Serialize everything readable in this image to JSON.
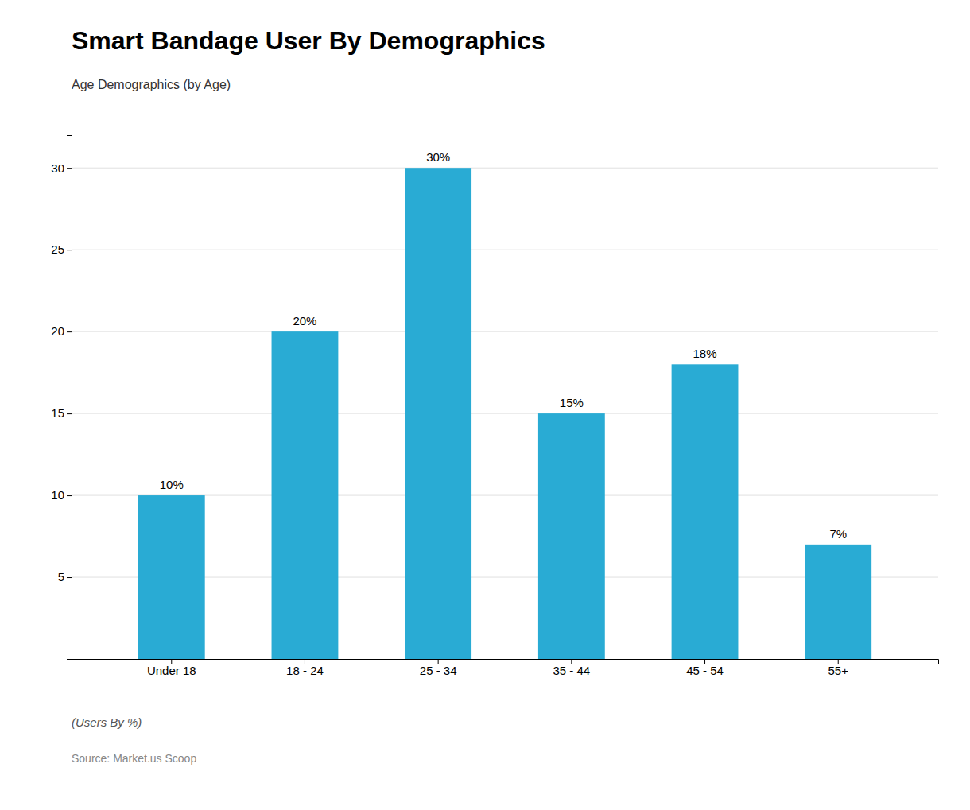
{
  "chart_data": {
    "type": "bar",
    "title": "Smart Bandage User By Demographics",
    "subtitle": "Age Demographics (by Age)",
    "categories": [
      "Under 18",
      "18 - 24",
      "25 - 34",
      "35 - 44",
      "45 - 54",
      "55+"
    ],
    "values": [
      10,
      20,
      30,
      15,
      18,
      7
    ],
    "value_labels": [
      "10%",
      "20%",
      "30%",
      "15%",
      "18%",
      "7%"
    ],
    "data_labels": true,
    "color": "#29ABD4",
    "ylim": [
      0,
      32
    ],
    "yticks": [
      5,
      10,
      15,
      20,
      25,
      30
    ],
    "grid": true,
    "ylabel": "(Users By %)",
    "source": "Source: Market.us Scoop"
  }
}
